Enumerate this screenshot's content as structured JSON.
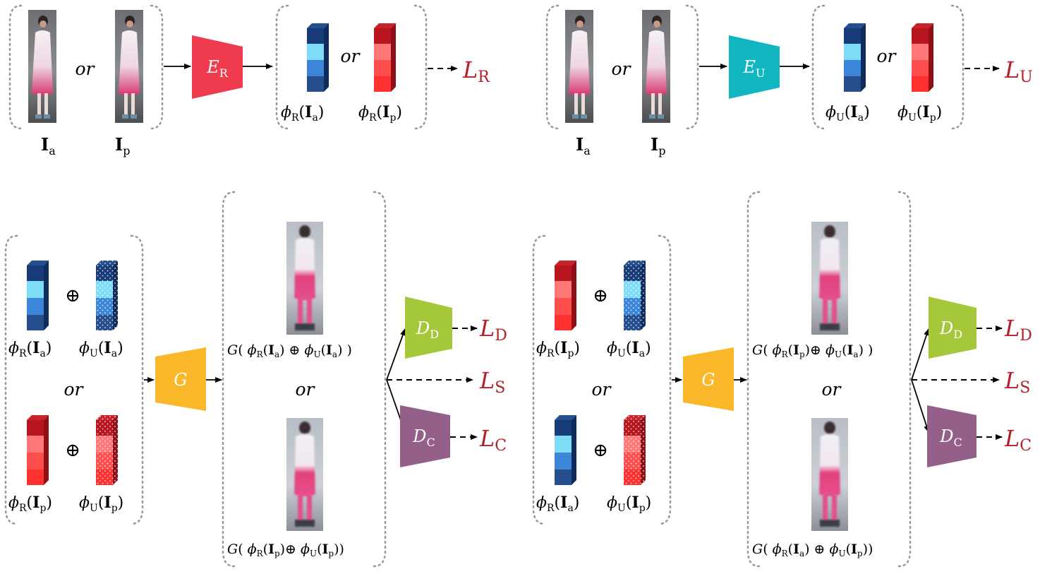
{
  "colors": {
    "encoder_r": "#ef3b4e",
    "encoder_u": "#10b7c1",
    "generator": "#fab72a",
    "disc_d": "#a4c83a",
    "disc_c": "#946089",
    "loss": "#b3202a",
    "blue_dark": "#183c7a",
    "blue_light": "#7fdcf6",
    "blue_mid": "#3b86d8",
    "red_dark": "#b8161e",
    "red_light": "#ff7777",
    "red_mid": "#ff4e4e"
  },
  "words": {
    "or": "or",
    "oplus": "⊕"
  },
  "top_left": {
    "inputs": [
      {
        "symbol": "I",
        "sub": "a"
      },
      {
        "symbol": "I",
        "sub": "p"
      }
    ],
    "encoder": {
      "symbol": "E",
      "sub": "R"
    },
    "features": [
      {
        "func": "ϕ",
        "fsub": "R",
        "arg": "I",
        "asub": "a"
      },
      {
        "func": "ϕ",
        "fsub": "R",
        "arg": "I",
        "asub": "p"
      }
    ],
    "loss": {
      "symbol": "L",
      "sub": "R"
    }
  },
  "top_right": {
    "inputs": [
      {
        "symbol": "I",
        "sub": "a"
      },
      {
        "symbol": "I",
        "sub": "p"
      }
    ],
    "encoder": {
      "symbol": "E",
      "sub": "U"
    },
    "features": [
      {
        "func": "ϕ",
        "fsub": "U",
        "arg": "I",
        "asub": "a"
      },
      {
        "func": "ϕ",
        "fsub": "U",
        "arg": "I",
        "asub": "p"
      }
    ],
    "loss": {
      "symbol": "L",
      "sub": "U"
    }
  },
  "bottom_left": {
    "pairs": [
      {
        "left": {
          "fsub": "R",
          "asub": "a"
        },
        "right": {
          "fsub": "U",
          "asub": "a"
        }
      },
      {
        "left": {
          "fsub": "R",
          "asub": "p"
        },
        "right": {
          "fsub": "U",
          "asub": "p"
        }
      }
    ],
    "generator": {
      "symbol": "G"
    },
    "outputs": [
      {
        "fsub1": "R",
        "asub1": "a",
        "fsub2": "U",
        "asub2": "a"
      },
      {
        "fsub1": "R",
        "asub1": "p",
        "fsub2": "U",
        "asub2": "p"
      }
    ],
    "disc_d": {
      "symbol": "D",
      "sub": "D"
    },
    "disc_c": {
      "symbol": "D",
      "sub": "C"
    },
    "losses": [
      {
        "symbol": "L",
        "sub": "D"
      },
      {
        "symbol": "L",
        "sub": "S"
      },
      {
        "symbol": "L",
        "sub": "C"
      }
    ]
  },
  "bottom_right": {
    "pairs": [
      {
        "left": {
          "fsub": "R",
          "asub": "p"
        },
        "right": {
          "fsub": "U",
          "asub": "a"
        }
      },
      {
        "left": {
          "fsub": "R",
          "asub": "a"
        },
        "right": {
          "fsub": "U",
          "asub": "p"
        }
      }
    ],
    "generator": {
      "symbol": "G"
    },
    "outputs": [
      {
        "fsub1": "R",
        "asub1": "p",
        "fsub2": "U",
        "asub2": "a"
      },
      {
        "fsub1": "R",
        "asub1": "a",
        "fsub2": "U",
        "asub2": "p"
      }
    ],
    "disc_d": {
      "symbol": "D",
      "sub": "D"
    },
    "disc_c": {
      "symbol": "D",
      "sub": "C"
    },
    "losses": [
      {
        "symbol": "L",
        "sub": "D"
      },
      {
        "symbol": "L",
        "sub": "S"
      },
      {
        "symbol": "L",
        "sub": "C"
      }
    ]
  }
}
